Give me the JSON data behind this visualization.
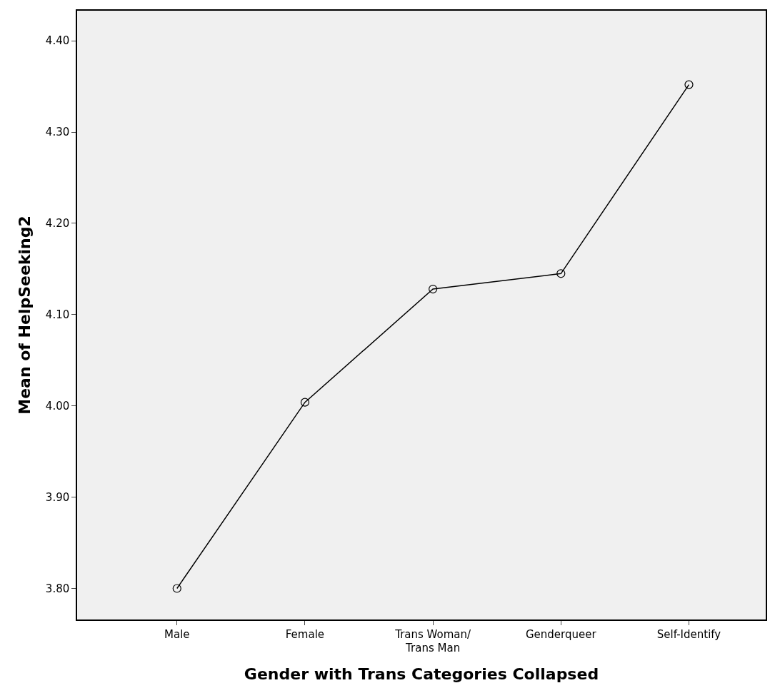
{
  "chart_data": {
    "type": "line",
    "xlabel": "Gender with Trans Categories Collapsed",
    "ylabel": "Mean of HelpSeeking2",
    "categories": [
      "Male",
      "Female",
      "Trans Woman/\nTrans Man",
      "Genderqueer",
      "Self-Identify"
    ],
    "series": [
      {
        "color": "#000000",
        "values": [
          3.8,
          4.004,
          4.128,
          4.145,
          4.352
        ]
      }
    ],
    "ylim": [
      3.766,
      4.433
    ],
    "yticks": [
      {
        "value": 3.8,
        "label": "3.80"
      },
      {
        "value": 3.9,
        "label": "3.90"
      },
      {
        "value": 4.0,
        "label": "4.00"
      },
      {
        "value": 4.1,
        "label": "4.10"
      },
      {
        "value": 4.2,
        "label": "4.20"
      },
      {
        "value": 4.3,
        "label": "4.30"
      },
      {
        "value": 4.4,
        "label": "4.40"
      }
    ],
    "marker": "circle",
    "line_style": "solid",
    "grid": false
  }
}
